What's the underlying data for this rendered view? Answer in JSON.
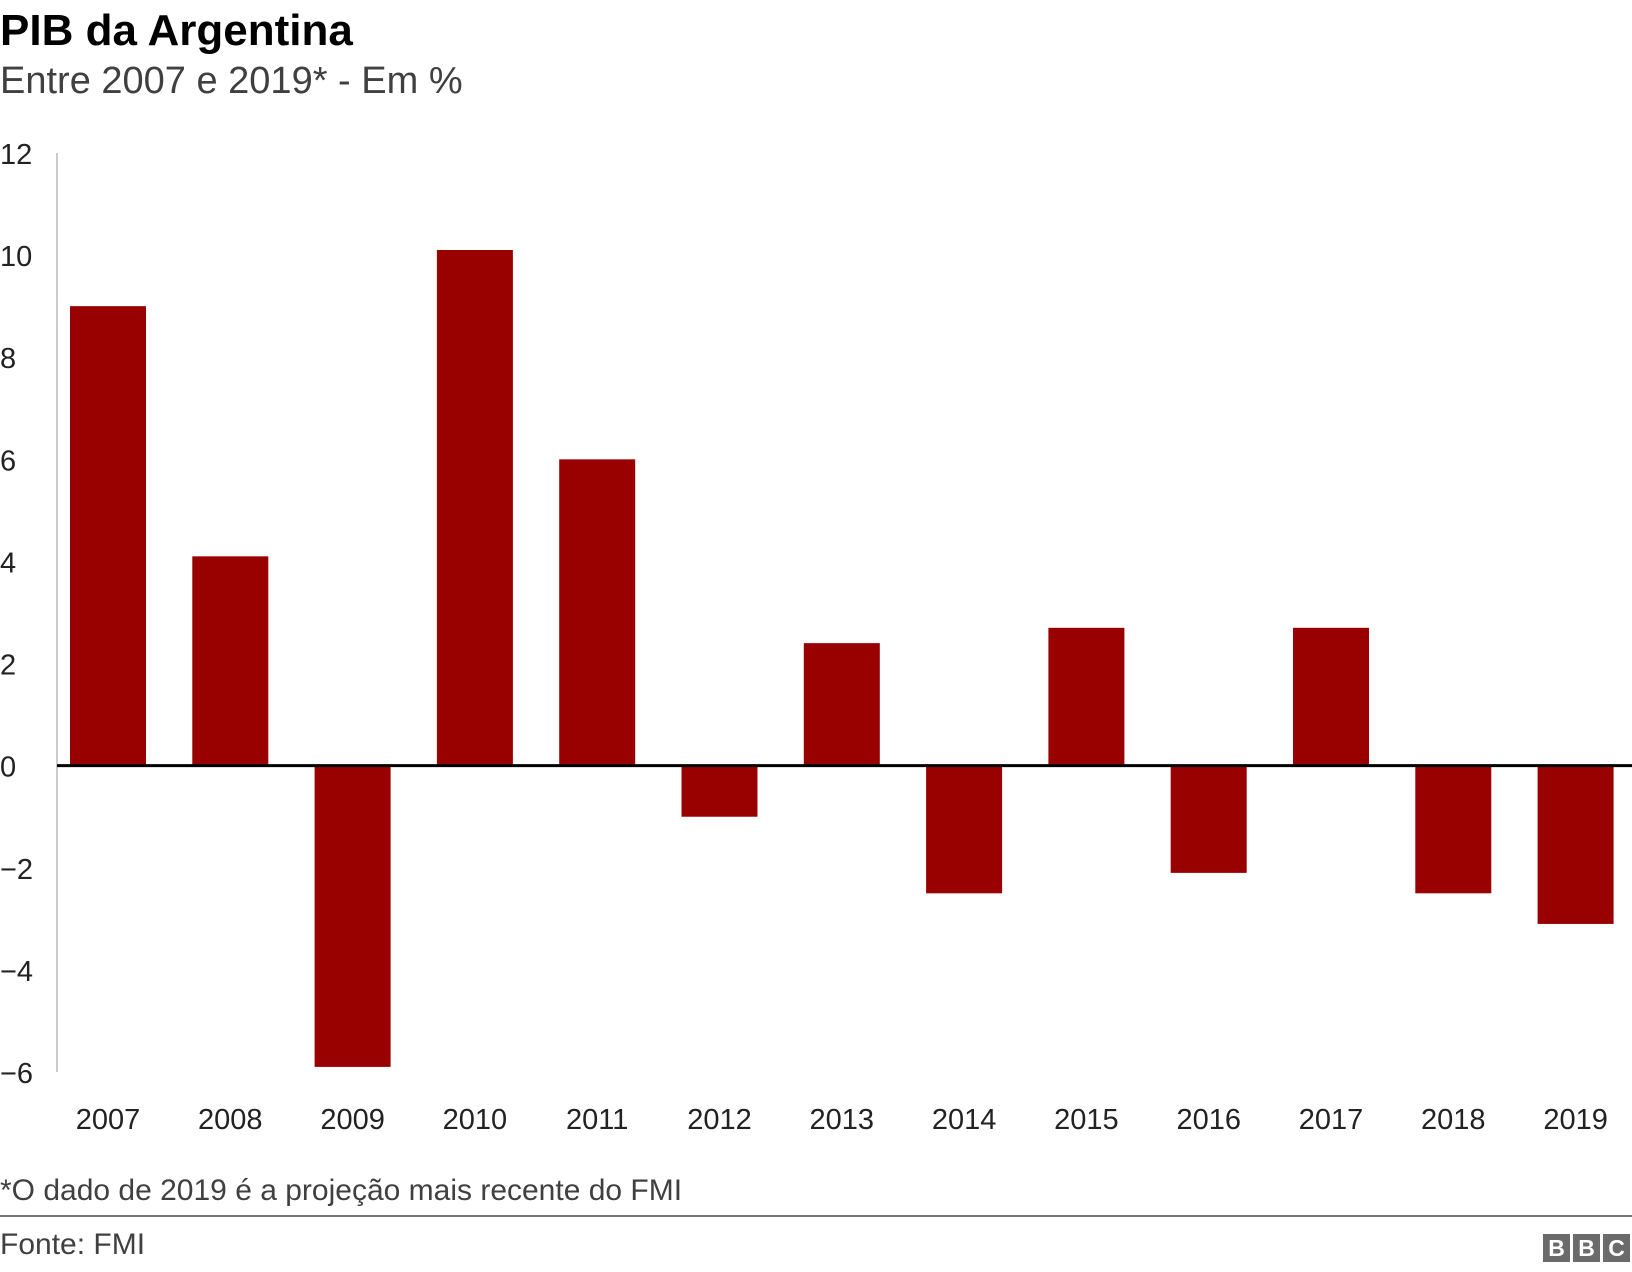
{
  "chart_data": {
    "type": "bar",
    "title": "PIB da Argentina",
    "subtitle": "Entre 2007 e 2019* - Em %",
    "categories": [
      "2007",
      "2008",
      "2009",
      "2010",
      "2011",
      "2012",
      "2013",
      "2014",
      "2015",
      "2016",
      "2017",
      "2018",
      "2019"
    ],
    "values": [
      9.0,
      4.1,
      -5.9,
      10.1,
      6.0,
      -1.0,
      2.4,
      -2.5,
      2.7,
      -2.1,
      2.7,
      -2.5,
      -3.1
    ],
    "ylim": [
      -6,
      12
    ],
    "yticks": [
      "12",
      "10",
      "8",
      "6",
      "4",
      "2",
      "0",
      "−2",
      "−4",
      "−6"
    ],
    "ytick_values": [
      12,
      10,
      8,
      6,
      4,
      2,
      0,
      -2,
      -4,
      -6
    ],
    "xlabel": "",
    "ylabel": "",
    "grid": false,
    "bar_color": "#990000",
    "footnote": "*O dado de 2019 é a projeção mais recente do FMI",
    "source": "Fonte: FMI"
  },
  "logo": {
    "letters": [
      "B",
      "B",
      "C"
    ]
  }
}
